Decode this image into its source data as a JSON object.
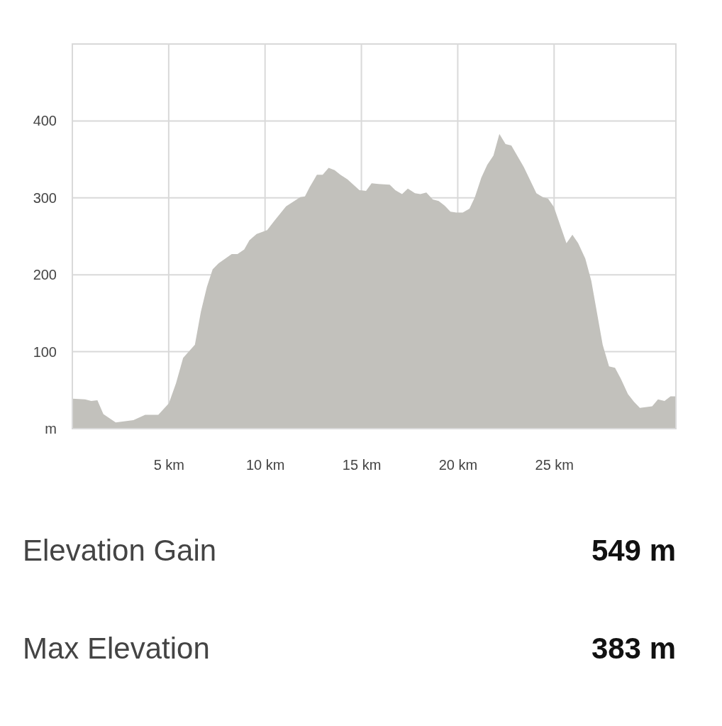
{
  "chart_data": {
    "type": "area",
    "color": "#c2c1bc",
    "x": [
      0,
      0.66,
      0.98,
      1.3,
      1.61,
      2.25,
      3.17,
      3.78,
      4.46,
      5.01,
      5.38,
      5.75,
      6.36,
      6.67,
      6.98,
      7.28,
      7.59,
      8.27,
      8.57,
      8.92,
      9.19,
      9.56,
      10.11,
      10.48,
      11.09,
      11.83,
      12.07,
      12.32,
      12.69,
      12.99,
      13.3,
      13.61,
      13.91,
      14.28,
      14.9,
      15.24,
      15.53,
      15.88,
      16.47,
      16.76,
      17.11,
      17.41,
      17.78,
      18.06,
      18.37,
      18.7,
      19.01,
      19.32,
      19.62,
      19.93,
      20.26,
      20.61,
      20.89,
      21.22,
      21.53,
      21.85,
      22.16,
      22.48,
      22.78,
      23.43,
      24.08,
      24.41,
      24.69,
      24.99,
      25.64,
      25.95,
      26.25,
      26.62,
      26.93,
      27.52,
      27.85,
      28.16,
      28.46,
      28.83,
      29.14,
      29.45,
      30.09,
      30.39,
      30.73,
      31.04,
      31.32
    ],
    "values": [
      39,
      38,
      36,
      37,
      19,
      8,
      11,
      18,
      18,
      33,
      59,
      92,
      109,
      152,
      184,
      207,
      215,
      227,
      227,
      233,
      245,
      253,
      258,
      270,
      289,
      301,
      302,
      314,
      330,
      330,
      339,
      336,
      330,
      324,
      310,
      309,
      319,
      318,
      317,
      310,
      305,
      312,
      306,
      305,
      307,
      298,
      296,
      290,
      282,
      281,
      281,
      286,
      301,
      326,
      343,
      355,
      383,
      370,
      368,
      340,
      306,
      301,
      299,
      288,
      241,
      252,
      241,
      221,
      192,
      109,
      81,
      79,
      65,
      45,
      35,
      27,
      29,
      38,
      36,
      42,
      42
    ],
    "xlim": [
      0,
      31.32
    ],
    "ylim": [
      0,
      500
    ],
    "xticks": [
      {
        "value": 5,
        "label": "5 km"
      },
      {
        "value": 10,
        "label": "10 km"
      },
      {
        "value": 15,
        "label": "15 km"
      },
      {
        "value": 20,
        "label": "20 km"
      },
      {
        "value": 25,
        "label": "25 km"
      }
    ],
    "yticks": [
      {
        "value": 0,
        "label": "m"
      },
      100,
      200,
      300,
      400,
      {
        "value": 500,
        "label": null
      }
    ],
    "grid": true,
    "annotations": [
      "Elevation Gain",
      "549 m",
      "Max Elevation",
      "383 m"
    ]
  }
}
